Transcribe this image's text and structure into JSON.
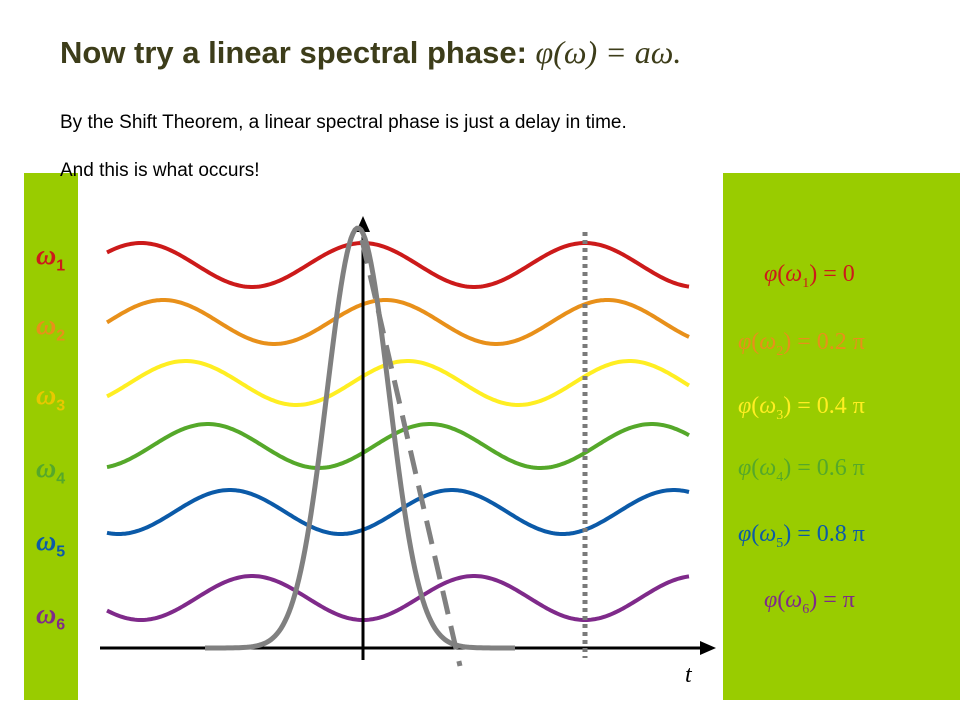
{
  "slide": {
    "title_text": "Now try a linear spectral phase:",
    "title_formula": "φ(ω) = aω.",
    "line1": "By the Shift Theorem, a linear spectral phase is just a delay in time.",
    "line2": "And this is what occurs!",
    "axis_label": "t"
  },
  "colors": {
    "bar": "#99cc00",
    "waves": [
      "#cc1a1a",
      "#e8901a",
      "#ffee22",
      "#55a82a",
      "#0b5aa8",
      "#7f2a8a"
    ],
    "pulse": "#808080",
    "title": "#3d3d1a"
  },
  "waves": [
    {
      "symbol": "ω",
      "index": "1",
      "phase_text": "φ(ω1) = 0",
      "phase_pi": 0.0,
      "phase_value": "0"
    },
    {
      "symbol": "ω",
      "index": "2",
      "phase_text": "φ(ω2) = 0.2 π",
      "phase_pi": 0.2,
      "phase_value": "0.2 π"
    },
    {
      "symbol": "ω",
      "index": "3",
      "phase_text": "φ(ω3) = 0.4 π",
      "phase_pi": 0.4,
      "phase_value": "0.4 π"
    },
    {
      "symbol": "ω",
      "index": "4",
      "phase_text": "φ(ω4) = 0.6 π",
      "phase_pi": 0.6,
      "phase_value": "0.6 π"
    },
    {
      "symbol": "ω",
      "index": "5",
      "phase_text": "φ(ω5) = 0.8 π",
      "phase_pi": 0.8,
      "phase_value": "0.8 π"
    },
    {
      "symbol": "ω",
      "index": "6",
      "phase_text": "φ(ω6) = π",
      "phase_pi": 1.0,
      "phase_value": "π"
    }
  ]
}
